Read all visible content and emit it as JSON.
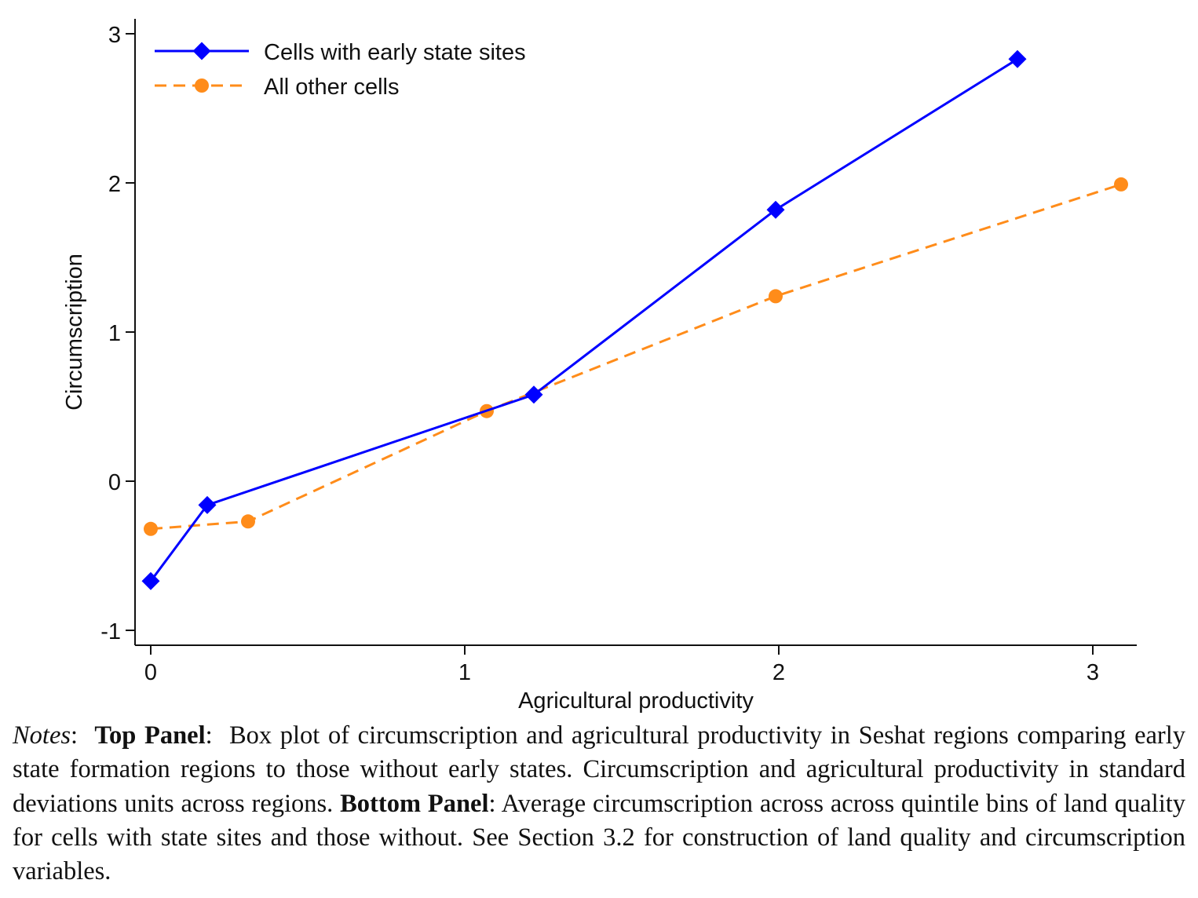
{
  "chart_data": {
    "type": "line",
    "xlabel": "Agricultural productivity",
    "ylabel": "Circumscription",
    "xlim": [
      -0.05,
      3.14
    ],
    "ylim": [
      -1.1,
      3.1
    ],
    "xticks": [
      0,
      1,
      2,
      3
    ],
    "yticks": [
      -1,
      0,
      1,
      2,
      3
    ],
    "xtick_labels": [
      "0",
      "1",
      "2",
      "3"
    ],
    "ytick_labels": [
      "-1",
      "0",
      "1",
      "2",
      "3"
    ],
    "grid": false,
    "legend_position": "top-left",
    "series": [
      {
        "name": "Cells with early state sites",
        "color": "#0000ff",
        "marker": "diamond",
        "line_style": "solid",
        "x": [
          0.0,
          0.18,
          1.22,
          1.99,
          2.76
        ],
        "y": [
          -0.67,
          -0.16,
          0.58,
          1.82,
          2.83
        ]
      },
      {
        "name": "All other cells",
        "color": "#ff8c1a",
        "marker": "circle",
        "line_style": "dashed",
        "x": [
          0.0,
          0.31,
          1.07,
          1.99,
          3.09
        ],
        "y": [
          -0.32,
          -0.27,
          0.47,
          1.24,
          1.99
        ]
      }
    ]
  },
  "notes": {
    "label": "Notes",
    "top_panel_label": "Top Panel",
    "top_panel_text": "Box plot of circumscription and agricultural productivity in Seshat regions comparing early state formation regions to those without early states. Circumscription and agricultural productivity in standard deviations units across regions.",
    "bottom_panel_label": "Bottom Panel",
    "bottom_panel_text": "Average circumscription across across quintile bins of land quality for cells with state sites and those without. See Section 3.2 for construction of land quality and circumscription variables."
  }
}
